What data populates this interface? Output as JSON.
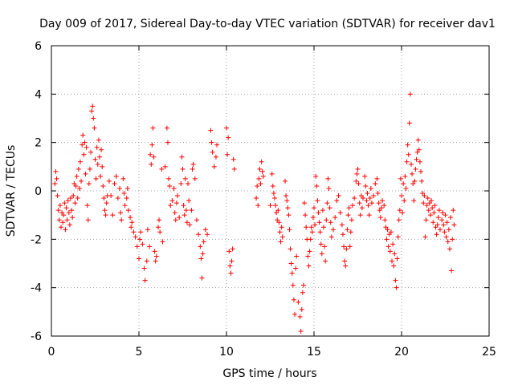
{
  "chart_data": {
    "type": "scatter",
    "title": "Day 009 of 2017, Sidereal Day-to-day VTEC variation (SDTVAR) for receiver dav1",
    "xlabel": "GPS time / hours",
    "ylabel": "SDTVAR / TECUs",
    "xlim": [
      0,
      25
    ],
    "ylim": [
      -6,
      6
    ],
    "xticks": [
      0,
      5,
      10,
      15,
      20,
      25
    ],
    "yticks": [
      -6,
      -4,
      -2,
      0,
      2,
      4,
      6
    ],
    "grid": true,
    "marker": "+",
    "color": "#ff0000",
    "legend": "none",
    "points": [
      [
        0.2,
        0.3
      ],
      [
        0.25,
        0.8
      ],
      [
        0.3,
        0.5
      ],
      [
        0.35,
        -0.2
      ],
      [
        0.4,
        -0.8
      ],
      [
        0.45,
        -1.2
      ],
      [
        0.5,
        -0.6
      ],
      [
        0.55,
        -1.5
      ],
      [
        0.6,
        -0.9
      ],
      [
        0.65,
        -1.3
      ],
      [
        0.7,
        -1.0
      ],
      [
        0.75,
        -0.5
      ],
      [
        0.8,
        -1.6
      ],
      [
        0.85,
        -0.7
      ],
      [
        0.9,
        -1.2
      ],
      [
        0.95,
        -0.4
      ],
      [
        1.0,
        -0.9
      ],
      [
        1.05,
        -1.4
      ],
      [
        1.1,
        -0.3
      ],
      [
        1.15,
        -0.8
      ],
      [
        1.2,
        -1.1
      ],
      [
        1.25,
        -0.2
      ],
      [
        1.3,
        0.3
      ],
      [
        1.35,
        -0.5
      ],
      [
        1.4,
        0.2
      ],
      [
        1.45,
        0.6
      ],
      [
        1.5,
        -0.3
      ],
      [
        1.55,
        0.9
      ],
      [
        1.6,
        0.1
      ],
      [
        1.65,
        1.2
      ],
      [
        1.7,
        0.4
      ],
      [
        1.75,
        1.9
      ],
      [
        1.8,
        2.3
      ],
      [
        1.85,
        1.5
      ],
      [
        1.9,
        2.0
      ],
      [
        1.95,
        0.7
      ],
      [
        2.0,
        1.8
      ],
      [
        2.05,
        -0.6
      ],
      [
        2.1,
        -1.2
      ],
      [
        2.15,
        0.3
      ],
      [
        2.2,
        0.9
      ],
      [
        2.25,
        1.6
      ],
      [
        2.3,
        3.3
      ],
      [
        2.35,
        3.5
      ],
      [
        2.4,
        3.0
      ],
      [
        2.45,
        2.6
      ],
      [
        2.5,
        1.3
      ],
      [
        2.55,
        0.5
      ],
      [
        2.6,
        1.8
      ],
      [
        2.65,
        1.1
      ],
      [
        2.7,
        2.1
      ],
      [
        2.75,
        1.4
      ],
      [
        2.8,
        0.6
      ],
      [
        2.85,
        1.7
      ],
      [
        2.9,
        1.0
      ],
      [
        2.95,
        0.2
      ],
      [
        3.0,
        -0.3
      ],
      [
        3.05,
        -0.8
      ],
      [
        3.1,
        -1.0
      ],
      [
        3.15,
        -0.5
      ],
      [
        3.2,
        -0.2
      ],
      [
        3.3,
        0.4
      ],
      [
        3.4,
        -0.2
      ],
      [
        3.5,
        -1.0
      ],
      [
        3.6,
        0.3
      ],
      [
        3.7,
        0.6
      ],
      [
        3.8,
        -0.3
      ],
      [
        3.9,
        0.1
      ],
      [
        3.95,
        -0.9
      ],
      [
        4.0,
        -1.2
      ],
      [
        4.1,
        0.5
      ],
      [
        4.15,
        -0.1
      ],
      [
        4.2,
        -0.6
      ],
      [
        4.3,
        -0.3
      ],
      [
        4.35,
        0.1
      ],
      [
        4.4,
        -0.8
      ],
      [
        4.5,
        -1.1
      ],
      [
        4.55,
        -1.5
      ],
      [
        4.6,
        -1.3
      ],
      [
        4.7,
        -1.7
      ],
      [
        4.8,
        -1.9
      ],
      [
        4.9,
        -2.3
      ],
      [
        5.0,
        -2.8
      ],
      [
        5.05,
        -2.0
      ],
      [
        5.1,
        -1.7
      ],
      [
        5.2,
        -2.2
      ],
      [
        5.3,
        -3.2
      ],
      [
        5.35,
        -3.7
      ],
      [
        5.45,
        -2.9
      ],
      [
        5.5,
        -1.6
      ],
      [
        5.6,
        -2.3
      ],
      [
        5.65,
        1.5
      ],
      [
        5.7,
        1.1
      ],
      [
        5.75,
        1.9
      ],
      [
        5.8,
        2.6
      ],
      [
        5.85,
        1.4
      ],
      [
        5.9,
        -2.5
      ],
      [
        5.95,
        -2.9
      ],
      [
        6.0,
        -2.7
      ],
      [
        6.1,
        -1.5
      ],
      [
        6.15,
        -1.2
      ],
      [
        6.2,
        -1.7
      ],
      [
        6.3,
        0.9
      ],
      [
        6.35,
        -2.1
      ],
      [
        6.5,
        1.0
      ],
      [
        6.6,
        2.6
      ],
      [
        6.65,
        2.0
      ],
      [
        6.7,
        0.5
      ],
      [
        6.75,
        0.2
      ],
      [
        6.8,
        -0.6
      ],
      [
        6.9,
        -0.4
      ],
      [
        7.0,
        0.1
      ],
      [
        7.05,
        -0.9
      ],
      [
        7.1,
        -1.2
      ],
      [
        7.15,
        -0.5
      ],
      [
        7.2,
        -0.2
      ],
      [
        7.3,
        -1.1
      ],
      [
        7.4,
        0.3
      ],
      [
        7.45,
        1.4
      ],
      [
        7.5,
        0.9
      ],
      [
        7.55,
        -0.6
      ],
      [
        7.6,
        -1.0
      ],
      [
        7.65,
        0.5
      ],
      [
        7.7,
        -0.8
      ],
      [
        7.75,
        -1.3
      ],
      [
        7.8,
        0.3
      ],
      [
        7.85,
        -0.4
      ],
      [
        7.9,
        -1.4
      ],
      [
        8.0,
        -0.8
      ],
      [
        8.05,
        0.9
      ],
      [
        8.1,
        1.1
      ],
      [
        8.2,
        0.5
      ],
      [
        8.3,
        -1.2
      ],
      [
        8.4,
        -1.8
      ],
      [
        8.5,
        -2.3
      ],
      [
        8.55,
        -2.8
      ],
      [
        8.6,
        -3.6
      ],
      [
        8.65,
        -2.6
      ],
      [
        8.7,
        -2.1
      ],
      [
        8.8,
        -1.6
      ],
      [
        8.9,
        -1.8
      ],
      [
        9.1,
        2.5
      ],
      [
        9.15,
        2.0
      ],
      [
        9.2,
        1.6
      ],
      [
        9.3,
        1.0
      ],
      [
        9.4,
        1.4
      ],
      [
        9.45,
        1.9
      ],
      [
        10.0,
        2.6
      ],
      [
        10.05,
        1.5
      ],
      [
        10.1,
        2.2
      ],
      [
        10.15,
        -2.5
      ],
      [
        10.2,
        -3.1
      ],
      [
        10.25,
        -3.4
      ],
      [
        10.3,
        -2.9
      ],
      [
        10.35,
        -2.4
      ],
      [
        10.4,
        1.3
      ],
      [
        10.45,
        0.9
      ],
      [
        11.7,
        -0.3
      ],
      [
        11.75,
        0.2
      ],
      [
        11.8,
        -0.6
      ],
      [
        11.85,
        0.5
      ],
      [
        11.9,
        0.9
      ],
      [
        11.95,
        0.3
      ],
      [
        12.0,
        1.2
      ],
      [
        12.05,
        0.8
      ],
      [
        12.1,
        0.6
      ],
      [
        12.5,
        -0.6
      ],
      [
        12.6,
        0.7
      ],
      [
        12.65,
        0.2
      ],
      [
        12.7,
        -0.1
      ],
      [
        12.75,
        -0.3
      ],
      [
        12.8,
        -0.6
      ],
      [
        12.85,
        -0.9
      ],
      [
        12.9,
        -1.2
      ],
      [
        12.95,
        -0.8
      ],
      [
        13.0,
        -1.3
      ],
      [
        13.05,
        -1.7
      ],
      [
        13.1,
        -2.1
      ],
      [
        13.15,
        -1.5
      ],
      [
        13.2,
        -1.9
      ],
      [
        13.35,
        0.4
      ],
      [
        13.4,
        -0.2
      ],
      [
        13.45,
        -0.4
      ],
      [
        13.5,
        -0.7
      ],
      [
        13.55,
        -1.0
      ],
      [
        13.6,
        -1.6
      ],
      [
        13.65,
        -2.4
      ],
      [
        13.7,
        -3.0
      ],
      [
        13.75,
        -3.4
      ],
      [
        13.8,
        -3.9
      ],
      [
        13.85,
        -4.5
      ],
      [
        13.9,
        -5.1
      ],
      [
        13.95,
        -3.2
      ],
      [
        14.0,
        -2.7
      ],
      [
        14.1,
        -4.6
      ],
      [
        14.2,
        -5.2
      ],
      [
        14.25,
        -5.8
      ],
      [
        14.3,
        -4.9
      ],
      [
        14.35,
        -4.2
      ],
      [
        14.4,
        -3.9
      ],
      [
        14.45,
        -0.5
      ],
      [
        14.5,
        -1.0
      ],
      [
        14.55,
        -1.5
      ],
      [
        14.6,
        -2.0
      ],
      [
        14.65,
        -2.7
      ],
      [
        14.7,
        -3.1
      ],
      [
        14.75,
        -2.5
      ],
      [
        14.8,
        -2.0
      ],
      [
        14.85,
        -1.5
      ],
      [
        14.9,
        -1.7
      ],
      [
        14.95,
        -1.1
      ],
      [
        15.0,
        -0.7
      ],
      [
        15.05,
        -1.4
      ],
      [
        15.1,
        0.6
      ],
      [
        15.15,
        0.2
      ],
      [
        15.2,
        -0.4
      ],
      [
        15.25,
        -0.9
      ],
      [
        15.3,
        -1.3
      ],
      [
        15.35,
        -1.7
      ],
      [
        15.4,
        -2.2
      ],
      [
        15.45,
        -2.6
      ],
      [
        15.5,
        -0.8
      ],
      [
        15.55,
        -1.5
      ],
      [
        15.6,
        -2.3
      ],
      [
        15.65,
        -2.9
      ],
      [
        15.7,
        -1.2
      ],
      [
        15.75,
        -0.5
      ],
      [
        15.8,
        0.5
      ],
      [
        15.85,
        0.1
      ],
      [
        15.9,
        -0.7
      ],
      [
        15.95,
        -1.3
      ],
      [
        16.0,
        -1.9
      ],
      [
        16.1,
        -1.6
      ],
      [
        16.2,
        -1.1
      ],
      [
        16.3,
        -0.4
      ],
      [
        16.4,
        -0.2
      ],
      [
        16.5,
        -0.9
      ],
      [
        16.6,
        -1.4
      ],
      [
        16.65,
        -1.8
      ],
      [
        16.7,
        -2.3
      ],
      [
        16.75,
        -2.9
      ],
      [
        16.8,
        -3.1
      ],
      [
        16.85,
        -2.4
      ],
      [
        16.9,
        -1.6
      ],
      [
        16.95,
        -1.0
      ],
      [
        17.0,
        -0.7
      ],
      [
        17.05,
        -2.3
      ],
      [
        17.1,
        -1.7
      ],
      [
        17.15,
        -1.2
      ],
      [
        17.2,
        -0.6
      ],
      [
        17.3,
        -0.3
      ],
      [
        17.4,
        0.4
      ],
      [
        17.45,
        0.7
      ],
      [
        17.5,
        0.9
      ],
      [
        17.55,
        0.3
      ],
      [
        17.6,
        -0.5
      ],
      [
        17.65,
        -1.0
      ],
      [
        17.7,
        -0.2
      ],
      [
        17.75,
        -0.7
      ],
      [
        17.8,
        -0.3
      ],
      [
        17.9,
        0.6
      ],
      [
        17.95,
        0.2
      ],
      [
        18.0,
        -0.4
      ],
      [
        18.05,
        -0.1
      ],
      [
        18.1,
        -0.6
      ],
      [
        18.15,
        -1.0
      ],
      [
        18.2,
        -0.3
      ],
      [
        18.25,
        0.1
      ],
      [
        18.3,
        -0.5
      ],
      [
        18.4,
        -0.2
      ],
      [
        18.5,
        0.3
      ],
      [
        18.6,
        0.5
      ],
      [
        18.65,
        -0.1
      ],
      [
        18.7,
        -0.5
      ],
      [
        18.75,
        -0.8
      ],
      [
        18.8,
        -1.1
      ],
      [
        18.85,
        -0.7
      ],
      [
        18.9,
        -0.4
      ],
      [
        19.0,
        -0.6
      ],
      [
        19.05,
        -1.2
      ],
      [
        19.1,
        -1.5
      ],
      [
        19.15,
        -2.0
      ],
      [
        19.2,
        -1.6
      ],
      [
        19.25,
        -2.3
      ],
      [
        19.3,
        -1.8
      ],
      [
        19.35,
        -2.5
      ],
      [
        19.4,
        -1.7
      ],
      [
        19.45,
        -2.9
      ],
      [
        19.5,
        -2.2
      ],
      [
        19.55,
        -3.1
      ],
      [
        19.6,
        -2.6
      ],
      [
        19.65,
        -3.7
      ],
      [
        19.7,
        -4.0
      ],
      [
        19.75,
        -2.8
      ],
      [
        19.8,
        -1.9
      ],
      [
        19.85,
        -1.2
      ],
      [
        19.9,
        -0.8
      ],
      [
        19.95,
        0.5
      ],
      [
        20.0,
        -0.2
      ],
      [
        20.05,
        -0.9
      ],
      [
        20.1,
        0.3
      ],
      [
        20.15,
        -0.4
      ],
      [
        20.2,
        0.6
      ],
      [
        20.25,
        0.1
      ],
      [
        20.3,
        1.2
      ],
      [
        20.35,
        1.9
      ],
      [
        20.4,
        1.5
      ],
      [
        20.45,
        2.8
      ],
      [
        20.5,
        4.0
      ],
      [
        20.55,
        1.1
      ],
      [
        20.6,
        0.7
      ],
      [
        20.65,
        0.3
      ],
      [
        20.7,
        -0.4
      ],
      [
        20.75,
        0.4
      ],
      [
        20.8,
        0.9
      ],
      [
        20.85,
        1.3
      ],
      [
        20.9,
        1.6
      ],
      [
        20.95,
        2.1
      ],
      [
        21.0,
        1.7
      ],
      [
        21.05,
        1.2
      ],
      [
        21.1,
        0.8
      ],
      [
        21.15,
        0.4
      ],
      [
        21.2,
        -0.1
      ],
      [
        21.25,
        -0.5
      ],
      [
        21.3,
        -0.2
      ],
      [
        21.35,
        -1.9
      ],
      [
        21.4,
        -1.2
      ],
      [
        21.45,
        -0.6
      ],
      [
        21.5,
        -0.3
      ],
      [
        21.55,
        -0.8
      ],
      [
        21.6,
        -0.5
      ],
      [
        21.65,
        -1.0
      ],
      [
        21.7,
        -0.4
      ],
      [
        21.75,
        -0.7
      ],
      [
        21.8,
        -1.3
      ],
      [
        21.85,
        -0.9
      ],
      [
        21.9,
        -0.6
      ],
      [
        21.95,
        -1.5
      ],
      [
        22.0,
        -1.8
      ],
      [
        22.05,
        -1.4
      ],
      [
        22.1,
        -1.1
      ],
      [
        22.15,
        -0.8
      ],
      [
        22.2,
        -1.6
      ],
      [
        22.3,
        -1.2
      ],
      [
        22.35,
        -0.9
      ],
      [
        22.4,
        -1.4
      ],
      [
        22.45,
        -1.7
      ],
      [
        22.5,
        -1.0
      ],
      [
        22.55,
        -1.9
      ],
      [
        22.6,
        -1.3
      ],
      [
        22.65,
        -2.1
      ],
      [
        22.7,
        -1.6
      ],
      [
        22.75,
        -2.4
      ],
      [
        22.8,
        -1.1
      ],
      [
        22.85,
        -3.3
      ],
      [
        22.9,
        -2.0
      ],
      [
        22.95,
        -0.8
      ],
      [
        23.0,
        -1.4
      ]
    ]
  }
}
